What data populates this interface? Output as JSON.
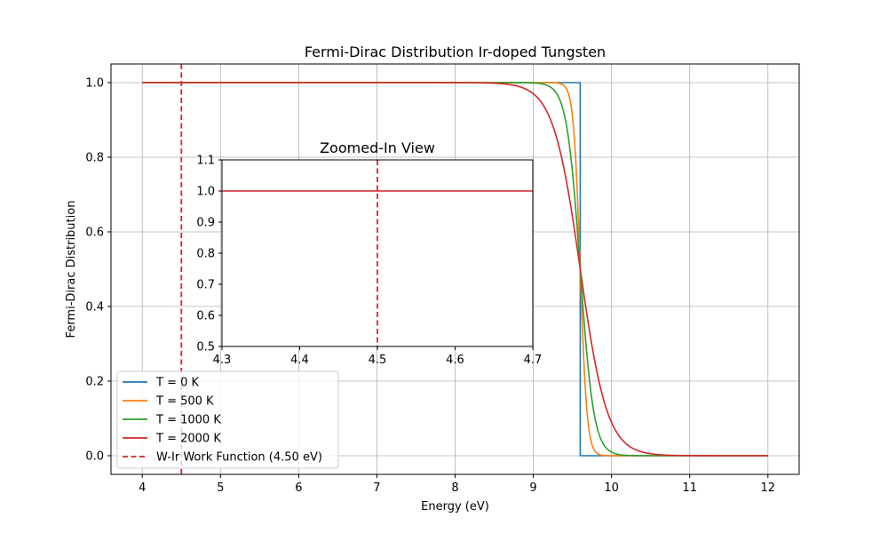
{
  "chart_data": [
    {
      "type": "line",
      "title": "Fermi-Dirac Distribution Ir-doped Tungsten",
      "xlabel": "Energy (eV)",
      "ylabel": "Fermi-Dirac Distribution",
      "xlim": [
        3.6,
        12.4
      ],
      "ylim": [
        -0.05,
        1.05
      ],
      "xticks": [
        4,
        5,
        6,
        7,
        8,
        9,
        10,
        11,
        12
      ],
      "yticks": [
        0.0,
        0.2,
        0.4,
        0.6,
        0.8,
        1.0
      ],
      "xtick_labels": [
        "4",
        "5",
        "6",
        "7",
        "8",
        "9",
        "10",
        "11",
        "12"
      ],
      "ytick_labels": [
        "0.0",
        "0.2",
        "0.4",
        "0.6",
        "0.8",
        "1.0"
      ],
      "grid": true,
      "legend_position": "bottom-left",
      "fermi_energy": 9.6,
      "x_range": [
        4,
        12
      ],
      "series": [
        {
          "name": "T = 0 K",
          "temperature": 0,
          "color": "#1f77b4",
          "style": "solid"
        },
        {
          "name": "T = 500 K",
          "temperature": 500,
          "color": "#ff7f0e",
          "style": "solid"
        },
        {
          "name": "T = 1000 K",
          "temperature": 1000,
          "color": "#2ca02c",
          "style": "solid"
        },
        {
          "name": "T = 2000 K",
          "temperature": 2000,
          "color": "#d62728",
          "style": "solid"
        }
      ],
      "vline": {
        "name": "W-Ir Work Function (4.50 eV)",
        "x": 4.5,
        "color": "#d62728",
        "style": "dashed"
      }
    },
    {
      "type": "line",
      "title": "Zoomed-In View",
      "xlim": [
        4.3,
        4.7
      ],
      "ylim": [
        0.5,
        1.1
      ],
      "xticks": [
        4.3,
        4.4,
        4.5,
        4.6,
        4.7
      ],
      "yticks": [
        0.5,
        0.6,
        0.7,
        0.8,
        0.9,
        1.0,
        1.1
      ],
      "xtick_labels": [
        "4.3",
        "4.4",
        "4.5",
        "4.6",
        "4.7"
      ],
      "ytick_labels": [
        "0.5",
        "0.6",
        "0.7",
        "0.8",
        "0.9",
        "1.0",
        "1.1"
      ],
      "grid": false,
      "series_value": 1.0,
      "series_color": "#d62728",
      "vline_x": 4.5,
      "vline_color": "#d62728"
    }
  ]
}
